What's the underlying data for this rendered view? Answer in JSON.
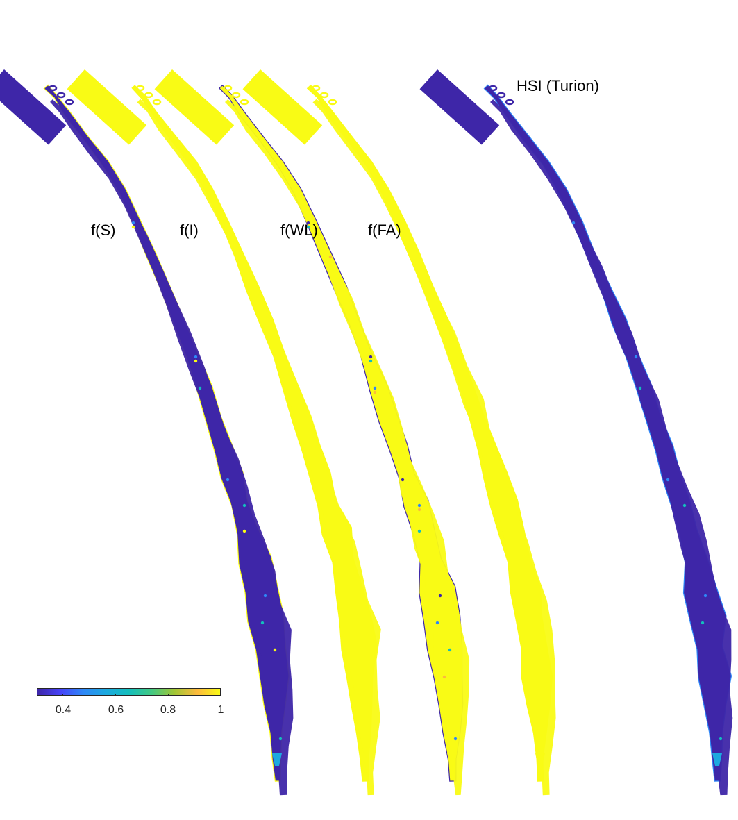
{
  "panels": [
    {
      "label": "f(S)",
      "fill": "#3e26a8",
      "rim": "#f9fb15",
      "accents": [
        "#2e87f7",
        "#14bebc",
        "#f9fb15"
      ]
    },
    {
      "label": "f(I)",
      "fill": "#f9fb15",
      "rim": "#f9fb15",
      "accents": []
    },
    {
      "label": "f(WL)",
      "fill": "#f9fb15",
      "rim": "#3e26a8",
      "accents": [
        "#3e26a8",
        "#2e87f7",
        "#14bebc",
        "#fcba3d"
      ]
    },
    {
      "label": "f(FA)",
      "fill": "#f9fb15",
      "rim": "#f9fb15",
      "accents": []
    },
    {
      "label": "HSI (Turion)",
      "fill": "#3e26a8",
      "rim": "#2e87f7",
      "accents": [
        "#2e87f7",
        "#14bebc"
      ]
    }
  ],
  "colorbar": {
    "colormap": "parula",
    "range": [
      0.3,
      1
    ],
    "ticks": [
      0.4,
      0.6,
      0.8,
      1
    ],
    "tick_labels": [
      "0.4",
      "0.6",
      "0.8",
      "1"
    ],
    "stops": [
      "#3e26a8",
      "#4743f8",
      "#2e87f7",
      "#1ca9df",
      "#14bebc",
      "#43c983",
      "#a1c635",
      "#fcba3d",
      "#f9fb15"
    ]
  }
}
